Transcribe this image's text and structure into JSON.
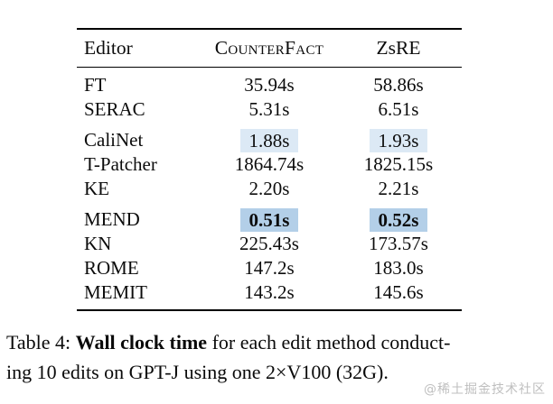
{
  "colors": {
    "text": "#0c0c0c",
    "rule": "#000000",
    "highlight-light": "#dce9f5",
    "highlight-strong": "#b3cfe8",
    "watermark": "#bfbfbf"
  },
  "table": {
    "header": {
      "editor": "Editor",
      "counterfact": "CounterFact",
      "zsre": "ZsRE"
    },
    "rows": [
      {
        "editor": "FT",
        "counterfact": "35.94s",
        "zsre": "58.86s",
        "highlight": "none"
      },
      {
        "editor": "SERAC",
        "counterfact": "5.31s",
        "zsre": "6.51s",
        "highlight": "none"
      },
      {
        "editor": "CaliNet",
        "counterfact": "1.88s",
        "zsre": "1.93s",
        "highlight": "light"
      },
      {
        "editor": "T-Patcher",
        "counterfact": "1864.74s",
        "zsre": "1825.15s",
        "highlight": "none"
      },
      {
        "editor": "KE",
        "counterfact": "2.20s",
        "zsre": "2.21s",
        "highlight": "none"
      },
      {
        "editor": "MEND",
        "counterfact": "0.51s",
        "zsre": "0.52s",
        "highlight": "strong"
      },
      {
        "editor": "KN",
        "counterfact": "225.43s",
        "zsre": "173.57s",
        "highlight": "none"
      },
      {
        "editor": "ROME",
        "counterfact": "147.2s",
        "zsre": "183.0s",
        "highlight": "none"
      },
      {
        "editor": "MEMIT",
        "counterfact": "143.2s",
        "zsre": "145.6s",
        "highlight": "none"
      }
    ]
  },
  "caption": {
    "prefix": "Table 4: ",
    "bold": "Wall clock time",
    "line1_rest": " for each edit method conduct-",
    "line2": "ing 10 edits on GPT-J using one 2×V100 (32G)."
  },
  "watermark": "@稀土掘金技术社区"
}
